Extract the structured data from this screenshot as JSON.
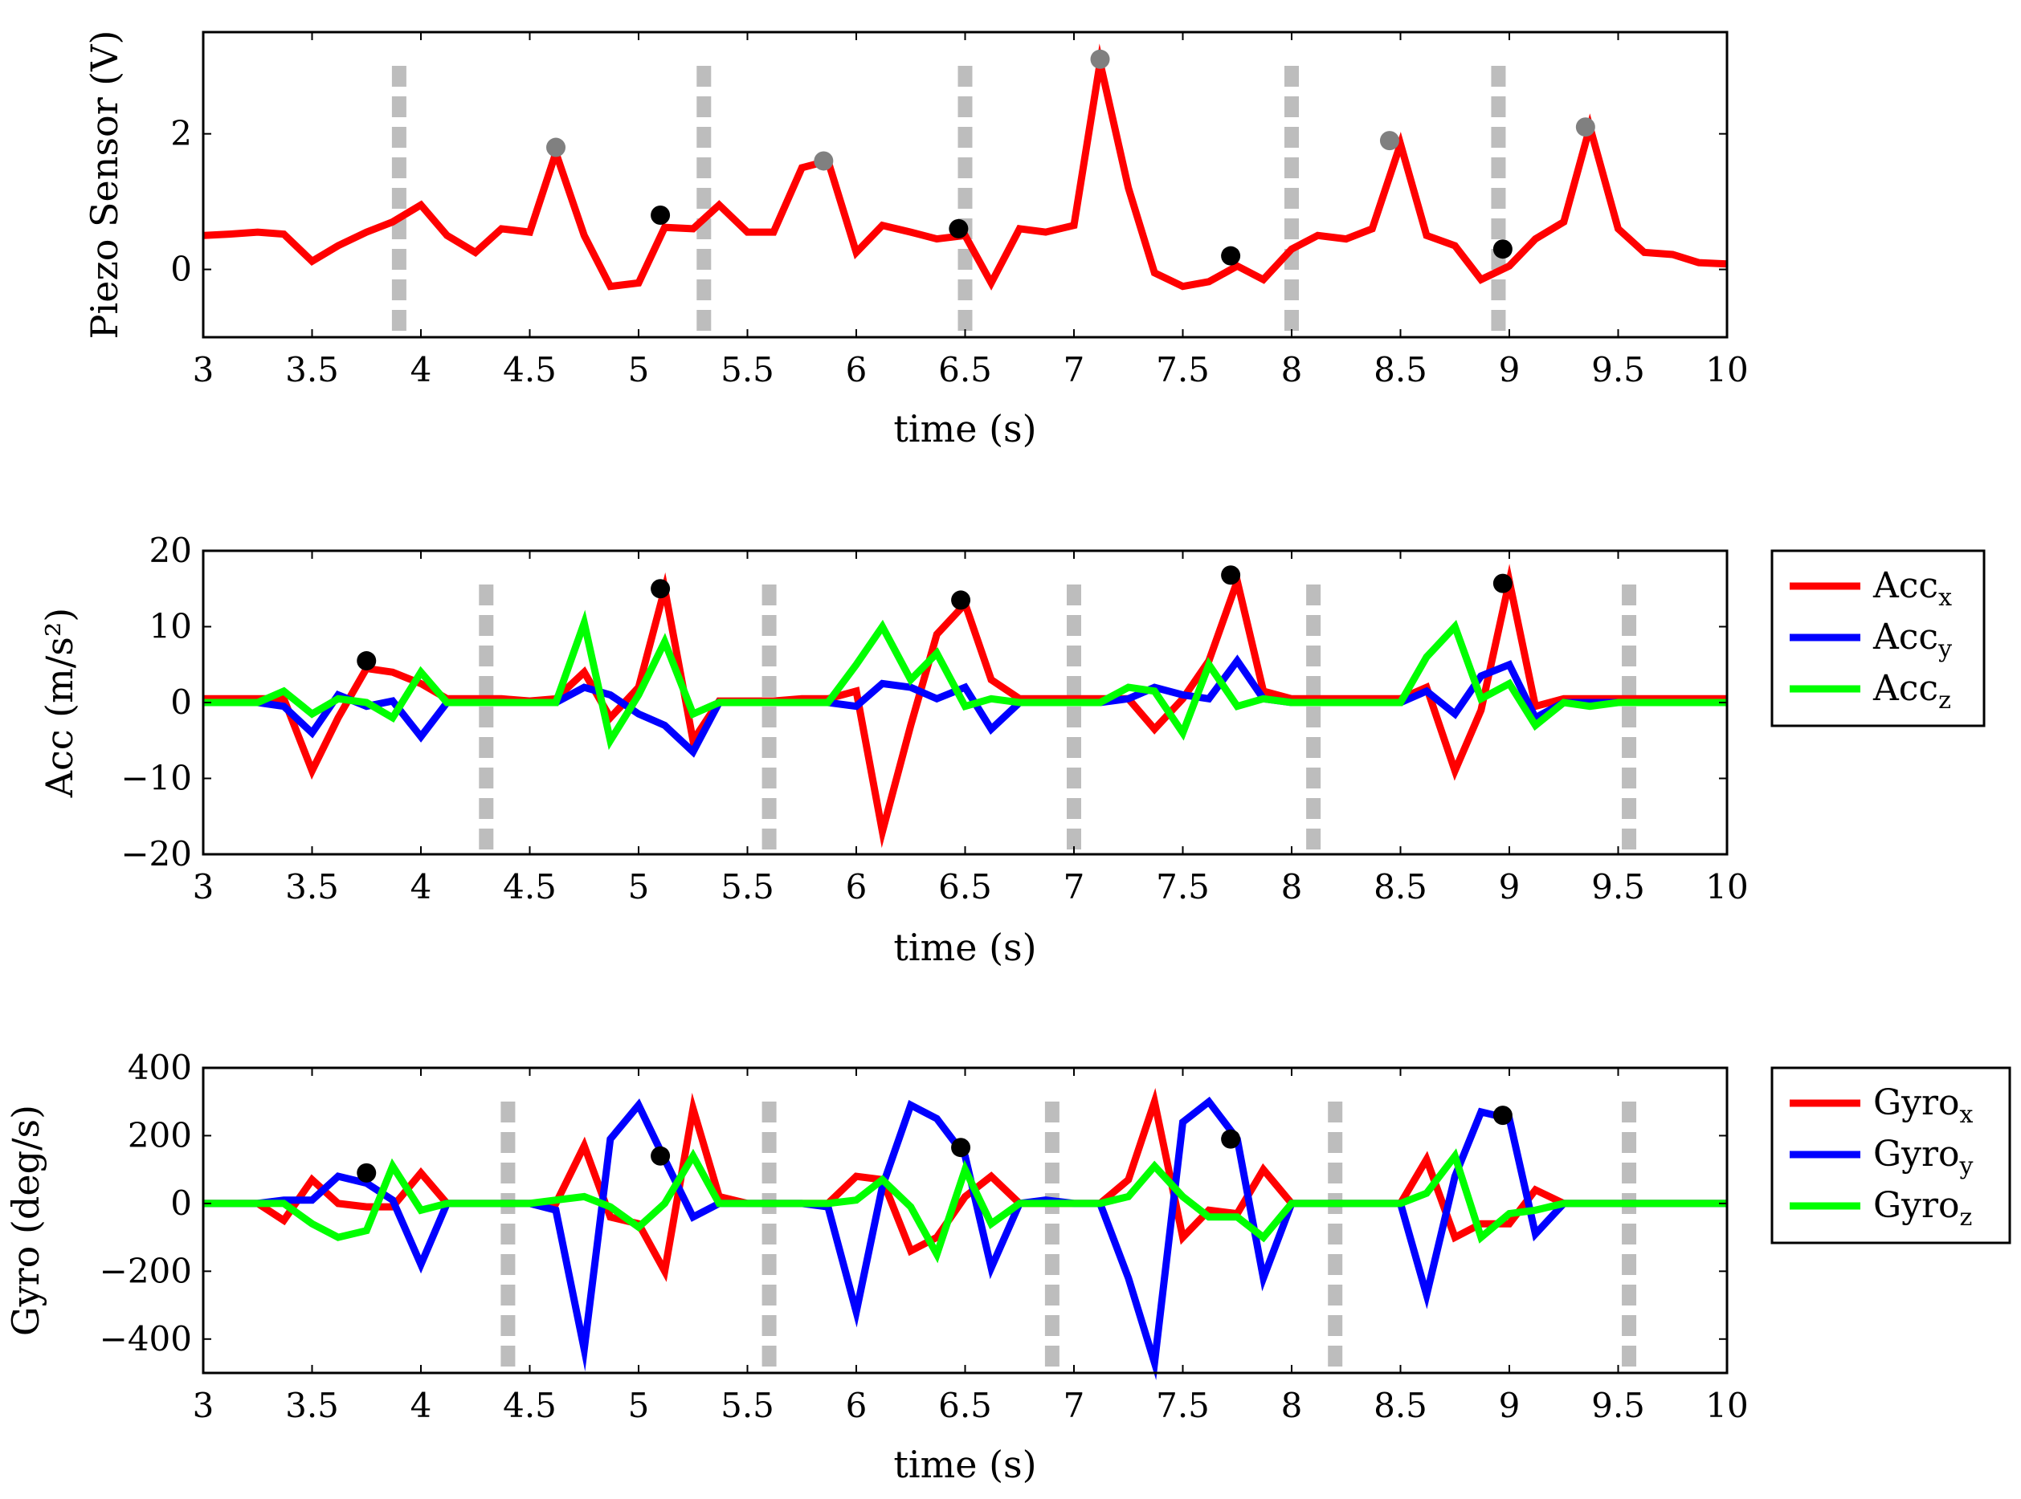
{
  "colors": {
    "red": "#ff0000",
    "blue": "#0000ff",
    "green": "#00ff00",
    "divider": "#bdbdbd",
    "marker_black": "#000000",
    "marker_gray": "#808080"
  },
  "chart_data": [
    {
      "type": "line",
      "title": "",
      "xlabel": "time (s)",
      "ylabel": "Piezo Sensor (V)",
      "xlim": [
        3,
        10
      ],
      "ylim": [
        -1,
        3.5
      ],
      "xticks": [
        3,
        3.5,
        4,
        4.5,
        5,
        5.5,
        6,
        6.5,
        7,
        7.5,
        8,
        8.5,
        9,
        9.5,
        10
      ],
      "xtick_labels": [
        "3",
        "3.5",
        "4",
        "4.5",
        "5",
        "5.5",
        "6",
        "6.5",
        "7",
        "7.5",
        "8",
        "8.5",
        "9",
        "9.5",
        "10"
      ],
      "yticks": [
        0,
        2
      ],
      "ytick_labels": [
        "0",
        "2"
      ],
      "grid": false,
      "legend": null,
      "dividers": [
        3.9,
        5.3,
        6.5,
        8.0,
        8.95
      ],
      "series": [
        {
          "name": "Piezo",
          "color": "#ff0000",
          "x": [
            3.0,
            3.12,
            3.25,
            3.37,
            3.5,
            3.62,
            3.75,
            3.87,
            4.0,
            4.12,
            4.25,
            4.37,
            4.5,
            4.62,
            4.75,
            4.87,
            5.0,
            5.12,
            5.25,
            5.37,
            5.5,
            5.62,
            5.75,
            5.87,
            6.0,
            6.12,
            6.25,
            6.37,
            6.5,
            6.62,
            6.75,
            6.87,
            7.0,
            7.12,
            7.25,
            7.37,
            7.5,
            7.62,
            7.75,
            7.87,
            8.0,
            8.12,
            8.25,
            8.37,
            8.5,
            8.62,
            8.75,
            8.87,
            9.0,
            9.12,
            9.25,
            9.37,
            9.5,
            9.62,
            9.75,
            9.87,
            10.0
          ],
          "y": [
            0.5,
            0.52,
            0.55,
            0.52,
            0.12,
            0.35,
            0.55,
            0.7,
            0.95,
            0.5,
            0.25,
            0.6,
            0.55,
            1.72,
            0.5,
            -0.25,
            -0.2,
            0.62,
            0.6,
            0.95,
            0.55,
            0.55,
            1.5,
            1.6,
            0.25,
            0.65,
            0.55,
            0.45,
            0.5,
            -0.2,
            0.6,
            0.55,
            0.65,
            3.05,
            1.2,
            -0.05,
            -0.25,
            -0.18,
            0.05,
            -0.15,
            0.3,
            0.5,
            0.45,
            0.6,
            1.85,
            0.5,
            0.35,
            -0.15,
            0.05,
            0.45,
            0.7,
            2.1,
            0.6,
            0.25,
            0.22,
            0.1,
            0.08
          ]
        }
      ],
      "markers": [
        {
          "x": 4.62,
          "y": 1.8,
          "color": "gray"
        },
        {
          "x": 5.1,
          "y": 0.8,
          "color": "black"
        },
        {
          "x": 5.85,
          "y": 1.6,
          "color": "gray"
        },
        {
          "x": 6.47,
          "y": 0.6,
          "color": "black"
        },
        {
          "x": 7.12,
          "y": 3.1,
          "color": "gray"
        },
        {
          "x": 7.72,
          "y": 0.2,
          "color": "black"
        },
        {
          "x": 8.45,
          "y": 1.9,
          "color": "gray"
        },
        {
          "x": 8.97,
          "y": 0.3,
          "color": "black"
        },
        {
          "x": 9.35,
          "y": 2.1,
          "color": "gray"
        }
      ]
    },
    {
      "type": "line",
      "title": "",
      "xlabel": "time (s)",
      "ylabel": "Acc (m/s²)",
      "xlim": [
        3,
        10
      ],
      "ylim": [
        -20,
        20
      ],
      "xticks": [
        3,
        3.5,
        4,
        4.5,
        5,
        5.5,
        6,
        6.5,
        7,
        7.5,
        8,
        8.5,
        9,
        9.5,
        10
      ],
      "xtick_labels": [
        "3",
        "3.5",
        "4",
        "4.5",
        "5",
        "5.5",
        "6",
        "6.5",
        "7",
        "7.5",
        "8",
        "8.5",
        "9",
        "9.5",
        "10"
      ],
      "yticks": [
        -20,
        -10,
        0,
        10,
        20
      ],
      "ytick_labels": [
        "−20",
        "−10",
        "0",
        "10",
        "20"
      ],
      "grid": false,
      "legend": "right",
      "dividers": [
        4.3,
        5.6,
        7.0,
        8.1,
        9.55
      ],
      "series": [
        {
          "name": "Acc",
          "subscript": "x",
          "color": "#ff0000",
          "x": [
            3.0,
            3.12,
            3.25,
            3.37,
            3.5,
            3.62,
            3.75,
            3.87,
            4.0,
            4.12,
            4.25,
            4.37,
            4.5,
            4.62,
            4.75,
            4.87,
            5.0,
            5.12,
            5.25,
            5.37,
            5.5,
            5.62,
            5.75,
            5.87,
            6.0,
            6.12,
            6.25,
            6.37,
            6.5,
            6.62,
            6.75,
            6.87,
            7.0,
            7.12,
            7.25,
            7.37,
            7.5,
            7.62,
            7.75,
            7.87,
            8.0,
            8.12,
            8.25,
            8.37,
            8.5,
            8.62,
            8.75,
            8.87,
            9.0,
            9.12,
            9.25,
            9.37,
            9.5,
            9.62,
            9.75,
            9.87,
            10.0
          ],
          "y": [
            0.5,
            0.5,
            0.5,
            0.5,
            -9,
            -2,
            4.5,
            4,
            2.5,
            0.5,
            0.5,
            0.5,
            0.2,
            0.5,
            4,
            -2,
            2,
            15,
            -5,
            0.2,
            0.2,
            0.2,
            0.5,
            0.5,
            1.5,
            -17,
            -3,
            9,
            13,
            3,
            0.5,
            0.5,
            0.5,
            0.5,
            0.5,
            -3.5,
            0.5,
            5.5,
            16,
            1.5,
            0.5,
            0.5,
            0.5,
            0.5,
            0.5,
            2,
            -9,
            -1,
            16,
            -0.5,
            0.5,
            0.5,
            0.5,
            0.5,
            0.5,
            0.5,
            0.5
          ]
        },
        {
          "name": "Acc",
          "subscript": "y",
          "color": "#0000ff",
          "x": [
            3.0,
            3.12,
            3.25,
            3.37,
            3.5,
            3.62,
            3.75,
            3.87,
            4.0,
            4.12,
            4.25,
            4.37,
            4.5,
            4.62,
            4.75,
            4.87,
            5.0,
            5.12,
            5.25,
            5.37,
            5.5,
            5.62,
            5.75,
            5.87,
            6.0,
            6.12,
            6.25,
            6.37,
            6.5,
            6.62,
            6.75,
            6.87,
            7.0,
            7.12,
            7.25,
            7.37,
            7.5,
            7.62,
            7.75,
            7.87,
            8.0,
            8.12,
            8.25,
            8.37,
            8.5,
            8.62,
            8.75,
            8.87,
            9.0,
            9.12,
            9.25,
            9.37,
            9.5,
            9.62,
            9.75,
            9.87,
            10.0
          ],
          "y": [
            0,
            0,
            0,
            -0.5,
            -4,
            1,
            -0.5,
            0.2,
            -4.5,
            0,
            0,
            0,
            0,
            0,
            2,
            1,
            -1.5,
            -3,
            -6.5,
            0,
            0,
            0,
            0,
            0,
            -0.5,
            2.5,
            2,
            0.5,
            2,
            -3.5,
            0,
            0,
            0,
            0,
            0.5,
            2,
            1,
            0.5,
            5.5,
            0.5,
            0,
            0,
            0,
            0,
            0,
            1.5,
            -1.5,
            3.5,
            5,
            -2,
            0,
            0,
            0,
            0,
            0,
            0,
            0
          ]
        },
        {
          "name": "Acc",
          "subscript": "z",
          "color": "#00ff00",
          "x": [
            3.0,
            3.12,
            3.25,
            3.37,
            3.5,
            3.62,
            3.75,
            3.87,
            4.0,
            4.12,
            4.25,
            4.37,
            4.5,
            4.62,
            4.75,
            4.87,
            5.0,
            5.12,
            5.25,
            5.37,
            5.5,
            5.62,
            5.75,
            5.87,
            6.0,
            6.12,
            6.25,
            6.37,
            6.5,
            6.62,
            6.75,
            6.87,
            7.0,
            7.12,
            7.25,
            7.37,
            7.5,
            7.62,
            7.75,
            7.87,
            8.0,
            8.12,
            8.25,
            8.37,
            8.5,
            8.62,
            8.75,
            8.87,
            9.0,
            9.12,
            9.25,
            9.37,
            9.5,
            9.62,
            9.75,
            9.87,
            10.0
          ],
          "y": [
            0,
            0,
            0,
            1.5,
            -1.5,
            0.5,
            0,
            -2,
            4,
            0,
            0,
            0,
            0,
            0,
            10.5,
            -5,
            1,
            8,
            -1.5,
            0,
            0,
            0,
            0,
            0,
            5,
            10,
            3,
            6.5,
            -0.5,
            0.5,
            0,
            0,
            0,
            0,
            2,
            1.5,
            -4,
            5,
            -0.5,
            0.5,
            0,
            0,
            0,
            0,
            0,
            6,
            10,
            0.5,
            2.5,
            -3,
            0,
            -0.5,
            0,
            0,
            0,
            0,
            0
          ]
        }
      ],
      "markers": [
        {
          "x": 3.75,
          "y": 5.5,
          "color": "black"
        },
        {
          "x": 5.1,
          "y": 15,
          "color": "black"
        },
        {
          "x": 6.48,
          "y": 13.5,
          "color": "black"
        },
        {
          "x": 7.72,
          "y": 16.8,
          "color": "black"
        },
        {
          "x": 8.97,
          "y": 15.7,
          "color": "black"
        }
      ]
    },
    {
      "type": "line",
      "title": "",
      "xlabel": "time (s)",
      "ylabel": "Gyro (deg/s)",
      "xlim": [
        3,
        10
      ],
      "ylim": [
        -500,
        400
      ],
      "xticks": [
        3,
        3.5,
        4,
        4.5,
        5,
        5.5,
        6,
        6.5,
        7,
        7.5,
        8,
        8.5,
        9,
        9.5,
        10
      ],
      "xtick_labels": [
        "3",
        "3.5",
        "4",
        "4.5",
        "5",
        "5.5",
        "6",
        "6.5",
        "7",
        "7.5",
        "8",
        "8.5",
        "9",
        "9.5",
        "10"
      ],
      "yticks": [
        -400,
        -200,
        0,
        200,
        400
      ],
      "ytick_labels": [
        "−400",
        "−200",
        "0",
        "200",
        "400"
      ],
      "grid": false,
      "legend": "right",
      "dividers": [
        4.4,
        5.6,
        6.9,
        8.2,
        9.55
      ],
      "series": [
        {
          "name": "Gyro",
          "subscript": "x",
          "color": "#ff0000",
          "x": [
            3.0,
            3.12,
            3.25,
            3.37,
            3.5,
            3.62,
            3.75,
            3.87,
            4.0,
            4.12,
            4.25,
            4.37,
            4.5,
            4.62,
            4.75,
            4.87,
            5.0,
            5.12,
            5.25,
            5.37,
            5.5,
            5.62,
            5.75,
            5.87,
            6.0,
            6.12,
            6.25,
            6.37,
            6.5,
            6.62,
            6.75,
            6.87,
            7.0,
            7.12,
            7.25,
            7.37,
            7.5,
            7.62,
            7.75,
            7.87,
            8.0,
            8.12,
            8.25,
            8.37,
            8.5,
            8.62,
            8.75,
            8.87,
            9.0,
            9.12,
            9.25,
            9.37,
            9.5,
            9.62,
            9.75,
            9.87,
            10.0
          ],
          "y": [
            0,
            0,
            0,
            -50,
            70,
            0,
            -10,
            -10,
            90,
            0,
            0,
            0,
            0,
            0,
            170,
            -40,
            -60,
            -200,
            280,
            20,
            0,
            0,
            0,
            0,
            80,
            70,
            -140,
            -100,
            20,
            80,
            0,
            0,
            0,
            0,
            70,
            300,
            -100,
            -20,
            -30,
            100,
            0,
            0,
            0,
            0,
            0,
            130,
            -100,
            -60,
            -60,
            40,
            0,
            0,
            0,
            0,
            0,
            0,
            0
          ]
        },
        {
          "name": "Gyro",
          "subscript": "y",
          "color": "#0000ff",
          "x": [
            3.0,
            3.12,
            3.25,
            3.37,
            3.5,
            3.62,
            3.75,
            3.87,
            4.0,
            4.12,
            4.25,
            4.37,
            4.5,
            4.62,
            4.75,
            4.87,
            5.0,
            5.12,
            5.25,
            5.37,
            5.5,
            5.62,
            5.75,
            5.87,
            6.0,
            6.12,
            6.25,
            6.37,
            6.5,
            6.62,
            6.75,
            6.87,
            7.0,
            7.12,
            7.25,
            7.37,
            7.5,
            7.62,
            7.75,
            7.87,
            8.0,
            8.12,
            8.25,
            8.37,
            8.5,
            8.62,
            8.75,
            8.87,
            9.0,
            9.12,
            9.25,
            9.37,
            9.5,
            9.62,
            9.75,
            9.87,
            10.0
          ],
          "y": [
            0,
            0,
            0,
            10,
            10,
            80,
            60,
            10,
            -180,
            0,
            0,
            0,
            0,
            -20,
            -430,
            190,
            290,
            130,
            -40,
            0,
            0,
            0,
            0,
            -10,
            -320,
            50,
            290,
            250,
            140,
            -190,
            0,
            10,
            0,
            0,
            -220,
            -470,
            240,
            300,
            190,
            -220,
            0,
            0,
            0,
            0,
            0,
            -270,
            80,
            270,
            250,
            -90,
            0,
            0,
            0,
            0,
            0,
            0,
            0
          ]
        },
        {
          "name": "Gyro",
          "subscript": "z",
          "color": "#00ff00",
          "x": [
            3.0,
            3.12,
            3.25,
            3.37,
            3.5,
            3.62,
            3.75,
            3.87,
            4.0,
            4.12,
            4.25,
            4.37,
            4.5,
            4.62,
            4.75,
            4.87,
            5.0,
            5.12,
            5.25,
            5.37,
            5.5,
            5.62,
            5.75,
            5.87,
            6.0,
            6.12,
            6.25,
            6.37,
            6.5,
            6.62,
            6.75,
            6.87,
            7.0,
            7.12,
            7.25,
            7.37,
            7.5,
            7.62,
            7.75,
            7.87,
            8.0,
            8.12,
            8.25,
            8.37,
            8.5,
            8.62,
            8.75,
            8.87,
            9.0,
            9.12,
            9.25,
            9.37,
            9.5,
            9.62,
            9.75,
            9.87,
            10.0
          ],
          "y": [
            0,
            0,
            0,
            0,
            -60,
            -100,
            -80,
            110,
            -20,
            0,
            0,
            0,
            0,
            10,
            20,
            -10,
            -70,
            0,
            140,
            0,
            0,
            0,
            0,
            0,
            10,
            70,
            -10,
            -150,
            100,
            -60,
            0,
            0,
            0,
            0,
            20,
            110,
            20,
            -40,
            -40,
            -100,
            0,
            0,
            0,
            0,
            0,
            30,
            140,
            -100,
            -30,
            -20,
            0,
            0,
            0,
            0,
            0,
            0,
            0
          ]
        }
      ],
      "markers": [
        {
          "x": 3.75,
          "y": 90,
          "color": "black"
        },
        {
          "x": 5.1,
          "y": 140,
          "color": "black"
        },
        {
          "x": 6.48,
          "y": 165,
          "color": "black"
        },
        {
          "x": 7.72,
          "y": 190,
          "color": "black"
        },
        {
          "x": 8.97,
          "y": 260,
          "color": "black"
        }
      ]
    }
  ]
}
